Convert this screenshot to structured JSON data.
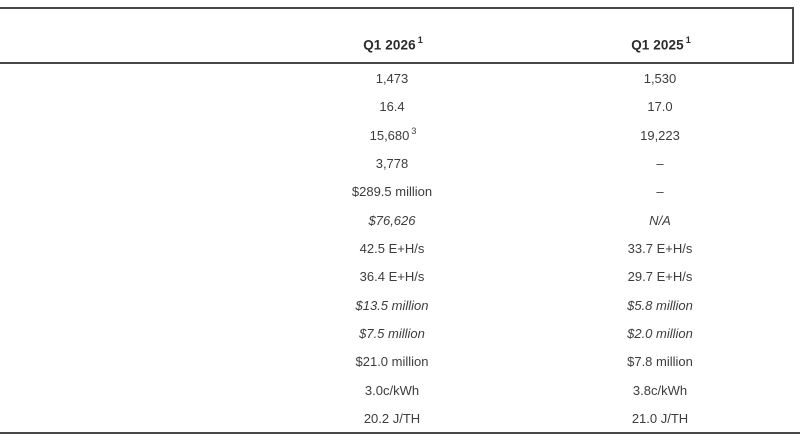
{
  "document": {
    "kind": "quarterly-results-comparison-table"
  },
  "table": {
    "header": {
      "col_2026_label": "Q1 2026",
      "col_2026_footnote": "1",
      "col_2025_label": "Q1 2025",
      "col_2025_footnote": "1"
    },
    "rows": [
      {
        "v2026": "1,473",
        "sup2026": "",
        "v2025": "1,530",
        "sup2025": ""
      },
      {
        "v2026": "16.4",
        "sup2026": "",
        "v2025": "17.0",
        "sup2025": ""
      },
      {
        "v2026": "15,680",
        "sup2026": "3",
        "v2025": "19,223",
        "sup2025": ""
      },
      {
        "v2026": "3,778",
        "sup2026": "",
        "v2025": "–",
        "sup2025": ""
      },
      {
        "v2026": "$289.5 million",
        "sup2026": "",
        "v2025": "–",
        "sup2025": ""
      },
      {
        "v2026": "$76,626",
        "sup2026": "",
        "v2025": "N/A",
        "sup2025": ""
      },
      {
        "v2026": "42.5 E+H/s",
        "sup2026": "",
        "v2025": "33.7 E+H/s",
        "sup2025": ""
      },
      {
        "v2026": "36.4 E+H/s",
        "sup2026": "",
        "v2025": "29.7 E+H/s",
        "sup2025": ""
      },
      {
        "v2026": "$13.5 million",
        "sup2026": "",
        "v2025": "$5.8 million",
        "sup2025": ""
      },
      {
        "v2026": "$7.5 million",
        "sup2026": "",
        "v2025": "$2.0 million",
        "sup2025": ""
      },
      {
        "v2026": "$21.0 million",
        "sup2026": "",
        "v2025": "$7.8 million",
        "sup2025": ""
      },
      {
        "v2026": "3.0c/kWh",
        "sup2026": "",
        "v2025": "3.8c/kWh",
        "sup2025": ""
      },
      {
        "v2026": "20.2 J/TH",
        "sup2026": "",
        "v2025": "21.0 J/TH",
        "sup2025": ""
      }
    ],
    "italic_rows": [
      5,
      8,
      9
    ],
    "colors": {
      "rule": "#474747",
      "body_text": "#3d3d3d",
      "header_text": "#2b2b2b",
      "background": "#ffffff"
    }
  }
}
